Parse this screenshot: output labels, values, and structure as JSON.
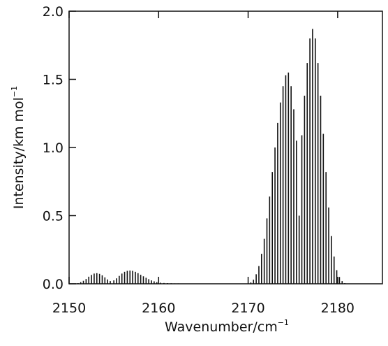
{
  "chart_data": {
    "type": "bar",
    "title": "",
    "xlabel": {
      "base": "Wavenumber/cm",
      "sup": "−1"
    },
    "ylabel": {
      "base": "Intensity/km mol",
      "sup": "−1"
    },
    "xlim": [
      2150,
      2185
    ],
    "ylim": [
      0,
      2.0
    ],
    "xticks": [
      2150,
      2160,
      2170,
      2180
    ],
    "yticks": [
      0.0,
      0.5,
      1.0,
      1.5,
      2.0
    ],
    "xtick_labels": [
      "2150",
      "2160",
      "2170",
      "2180"
    ],
    "ytick_labels": [
      "0.0",
      "0.5",
      "1.0",
      "1.5",
      "2.0"
    ],
    "grid": false,
    "legend": "none",
    "series": [
      {
        "x": [
          2151.0,
          2151.3,
          2151.6,
          2151.9,
          2152.2,
          2152.5,
          2152.8,
          2153.1,
          2153.4,
          2153.7,
          2154.0,
          2154.3,
          2154.6,
          2155.0,
          2155.3,
          2155.6,
          2155.9,
          2156.2,
          2156.5,
          2156.8,
          2157.1,
          2157.4,
          2157.7,
          2158.0,
          2158.3,
          2158.6,
          2158.9,
          2159.2,
          2159.5,
          2159.8,
          2160.2,
          2160.6,
          2161.0,
          2161.4,
          2161.8,
          2162.2,
          2162.6,
          2163.0,
          2163.4,
          2163.8,
          2170.3,
          2170.6,
          2170.9,
          2171.2,
          2171.5,
          2171.8,
          2172.1,
          2172.4,
          2172.7,
          2173.0,
          2173.3,
          2173.6,
          2173.9,
          2174.2,
          2174.5,
          2174.8,
          2175.1,
          2175.4,
          2175.7,
          2176.0,
          2176.3,
          2176.6,
          2176.9,
          2177.2,
          2177.5,
          2177.8,
          2178.1,
          2178.4,
          2178.7,
          2179.0,
          2179.3,
          2179.6,
          2179.9,
          2180.2,
          2180.5,
          2180.8
        ],
        "y": [
          0.005,
          0.012,
          0.022,
          0.035,
          0.052,
          0.065,
          0.075,
          0.078,
          0.073,
          0.062,
          0.047,
          0.032,
          0.02,
          0.025,
          0.04,
          0.058,
          0.075,
          0.088,
          0.095,
          0.097,
          0.095,
          0.088,
          0.078,
          0.066,
          0.055,
          0.044,
          0.034,
          0.025,
          0.018,
          0.012,
          0.008,
          0.006,
          0.005,
          0.004,
          0.003,
          0.003,
          0.002,
          0.002,
          0.002,
          0.001,
          0.01,
          0.03,
          0.07,
          0.13,
          0.22,
          0.33,
          0.48,
          0.64,
          0.82,
          1.0,
          1.18,
          1.33,
          1.45,
          1.53,
          1.55,
          1.45,
          1.28,
          1.05,
          0.5,
          1.09,
          1.38,
          1.62,
          1.8,
          1.87,
          1.8,
          1.62,
          1.38,
          1.1,
          0.82,
          0.56,
          0.35,
          0.2,
          0.1,
          0.05,
          0.02,
          0.005
        ]
      }
    ]
  }
}
